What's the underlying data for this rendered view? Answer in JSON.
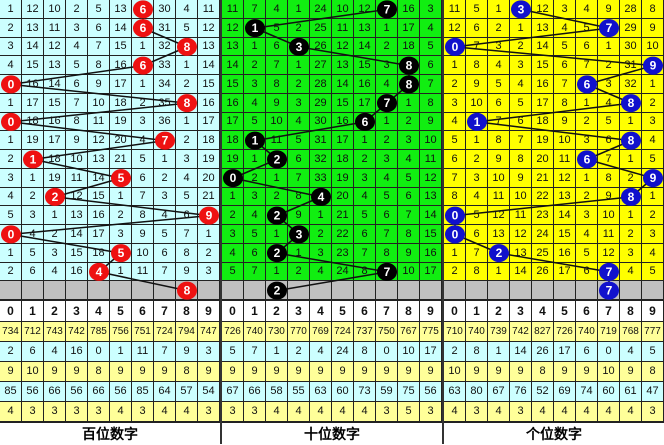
{
  "chart_data": {
    "type": "table",
    "title": "",
    "header_digits": [
      "0",
      "1",
      "2",
      "3",
      "4",
      "5",
      "6",
      "7",
      "8",
      "9"
    ],
    "panels": [
      {
        "label": "百位数字",
        "bg": "#ccffff",
        "ball_color": "#ee1111",
        "rows": [
          [
            1,
            12,
            10,
            2,
            5,
            13,
            6,
            30,
            4,
            11
          ],
          [
            2,
            13,
            11,
            3,
            6,
            14,
            6,
            31,
            5,
            12
          ],
          [
            3,
            14,
            12,
            4,
            7,
            15,
            1,
            32,
            8,
            13
          ],
          [
            4,
            15,
            13,
            5,
            8,
            16,
            6,
            33,
            1,
            14
          ],
          [
            0,
            16,
            14,
            6,
            9,
            17,
            1,
            34,
            2,
            15
          ],
          [
            1,
            17,
            15,
            7,
            10,
            18,
            2,
            35,
            8,
            16
          ],
          [
            0,
            18,
            16,
            8,
            11,
            19,
            3,
            36,
            1,
            17
          ],
          [
            1,
            19,
            17,
            9,
            12,
            20,
            4,
            7,
            2,
            18
          ],
          [
            2,
            1,
            18,
            10,
            13,
            21,
            5,
            1,
            3,
            19
          ],
          [
            3,
            1,
            19,
            11,
            14,
            5,
            6,
            2,
            4,
            20
          ],
          [
            4,
            2,
            2,
            12,
            15,
            1,
            7,
            3,
            5,
            21
          ],
          [
            5,
            3,
            1,
            13,
            16,
            2,
            8,
            4,
            6,
            9
          ],
          [
            0,
            4,
            2,
            14,
            17,
            3,
            9,
            5,
            7,
            1
          ],
          [
            1,
            5,
            3,
            15,
            18,
            5,
            10,
            6,
            8,
            2
          ],
          [
            2,
            6,
            4,
            16,
            4,
            1,
            11,
            7,
            9,
            3
          ]
        ],
        "winning": [
          6,
          6,
          8,
          6,
          0,
          8,
          0,
          7,
          1,
          5,
          2,
          9,
          0,
          5,
          4
        ],
        "next": 8,
        "stats": [
          [
            734,
            712,
            743,
            742,
            785,
            756,
            751,
            724,
            794,
            747
          ],
          [
            2,
            6,
            4,
            16,
            0,
            1,
            11,
            7,
            9,
            3
          ],
          [
            9,
            10,
            9,
            9,
            8,
            9,
            9,
            9,
            8,
            9
          ],
          [
            85,
            56,
            66,
            56,
            66,
            56,
            85,
            64,
            57,
            54
          ],
          [
            4,
            3,
            3,
            3,
            3,
            4,
            3,
            4,
            4,
            3
          ]
        ]
      },
      {
        "label": "十位数字",
        "bg": "#11ee11",
        "ball_color": "#000000",
        "rows": [
          [
            11,
            7,
            4,
            1,
            24,
            10,
            12,
            7,
            16,
            3
          ],
          [
            12,
            1,
            5,
            2,
            25,
            11,
            13,
            1,
            17,
            4
          ],
          [
            13,
            1,
            6,
            3,
            26,
            12,
            14,
            2,
            18,
            5
          ],
          [
            14,
            2,
            7,
            1,
            27,
            13,
            15,
            3,
            8,
            6
          ],
          [
            15,
            3,
            8,
            2,
            28,
            14,
            16,
            4,
            8,
            7
          ],
          [
            16,
            4,
            9,
            3,
            29,
            15,
            17,
            7,
            1,
            8
          ],
          [
            17,
            5,
            10,
            4,
            30,
            16,
            6,
            1,
            2,
            9
          ],
          [
            18,
            1,
            11,
            5,
            31,
            17,
            1,
            2,
            3,
            10
          ],
          [
            19,
            1,
            2,
            6,
            32,
            18,
            2,
            3,
            4,
            11
          ],
          [
            0,
            2,
            1,
            7,
            33,
            19,
            3,
            4,
            5,
            12
          ],
          [
            1,
            3,
            2,
            8,
            4,
            20,
            4,
            5,
            6,
            13
          ],
          [
            2,
            4,
            2,
            9,
            1,
            21,
            5,
            6,
            7,
            14
          ],
          [
            3,
            5,
            1,
            3,
            2,
            22,
            6,
            7,
            8,
            15
          ],
          [
            4,
            6,
            2,
            1,
            3,
            23,
            7,
            8,
            9,
            16
          ],
          [
            5,
            7,
            1,
            2,
            4,
            24,
            8,
            7,
            10,
            17
          ]
        ],
        "winning": [
          7,
          1,
          3,
          8,
          8,
          7,
          6,
          1,
          2,
          0,
          4,
          2,
          3,
          2,
          7
        ],
        "next": 2,
        "stats": [
          [
            726,
            740,
            730,
            770,
            769,
            724,
            737,
            750,
            767,
            775
          ],
          [
            5,
            7,
            1,
            2,
            4,
            24,
            8,
            0,
            10,
            17
          ],
          [
            9,
            9,
            9,
            9,
            9,
            9,
            9,
            9,
            9,
            9
          ],
          [
            67,
            66,
            58,
            55,
            63,
            60,
            73,
            59,
            75,
            56
          ],
          [
            3,
            3,
            4,
            4,
            4,
            4,
            4,
            3,
            5,
            3
          ]
        ]
      },
      {
        "label": "个位数字",
        "bg": "#ffff00",
        "ball_color": "#1111cc",
        "rows": [
          [
            11,
            5,
            1,
            3,
            12,
            3,
            4,
            9,
            28,
            8
          ],
          [
            12,
            6,
            2,
            1,
            13,
            4,
            5,
            7,
            29,
            9
          ],
          [
            0,
            7,
            3,
            2,
            14,
            5,
            6,
            1,
            30,
            10
          ],
          [
            1,
            8,
            4,
            3,
            15,
            6,
            7,
            2,
            31,
            9
          ],
          [
            2,
            9,
            5,
            4,
            16,
            7,
            6,
            3,
            32,
            1
          ],
          [
            3,
            10,
            6,
            5,
            17,
            8,
            1,
            4,
            8,
            2
          ],
          [
            4,
            1,
            7,
            6,
            18,
            9,
            2,
            5,
            1,
            3
          ],
          [
            5,
            1,
            8,
            7,
            19,
            10,
            3,
            6,
            8,
            4
          ],
          [
            6,
            2,
            9,
            8,
            20,
            11,
            6,
            7,
            1,
            5
          ],
          [
            7,
            3,
            10,
            9,
            21,
            12,
            1,
            8,
            2,
            9
          ],
          [
            8,
            4,
            11,
            10,
            22,
            13,
            2,
            9,
            8,
            1
          ],
          [
            0,
            5,
            12,
            11,
            23,
            14,
            3,
            10,
            1,
            2
          ],
          [
            0,
            6,
            13,
            12,
            24,
            15,
            4,
            11,
            2,
            3
          ],
          [
            1,
            7,
            2,
            13,
            25,
            16,
            5,
            12,
            3,
            4
          ],
          [
            2,
            8,
            1,
            14,
            26,
            17,
            6,
            7,
            4,
            5
          ]
        ],
        "winning": [
          3,
          7,
          0,
          9,
          6,
          8,
          1,
          8,
          6,
          9,
          8,
          0,
          0,
          2,
          7
        ],
        "next": 7,
        "stats": [
          [
            710,
            740,
            739,
            742,
            827,
            726,
            740,
            719,
            768,
            777
          ],
          [
            2,
            8,
            1,
            14,
            26,
            17,
            6,
            0,
            4,
            5
          ],
          [
            10,
            9,
            9,
            9,
            8,
            9,
            9,
            10,
            9,
            8
          ],
          [
            63,
            80,
            67,
            76,
            52,
            69,
            74,
            60,
            61,
            47
          ],
          [
            4,
            3,
            4,
            3,
            4,
            4,
            4,
            4,
            4,
            3
          ]
        ]
      }
    ],
    "colors": {
      "prediction_row": "#c0c0c0",
      "stat_yellow": "#ffff99",
      "stat_cyan": "#ccffff",
      "grid": "#222222"
    }
  }
}
